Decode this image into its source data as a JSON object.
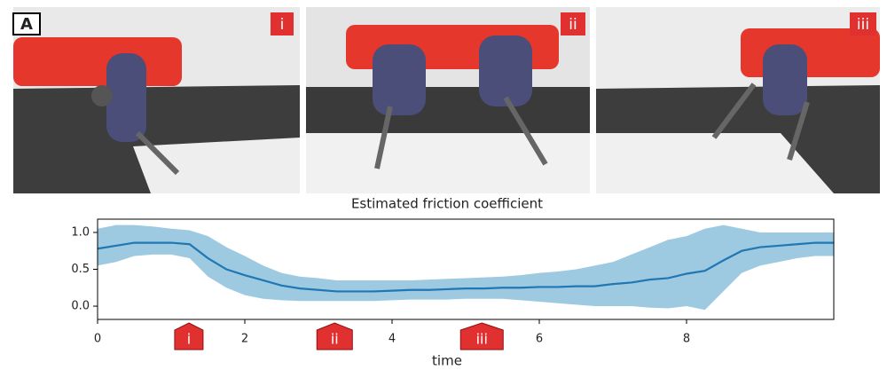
{
  "panel_label": "A",
  "photos": [
    "i",
    "ii",
    "iii"
  ],
  "chart_data": {
    "type": "line",
    "title": "Estimated friction coefficient",
    "xlabel": "time",
    "x": [
      0,
      0.25,
      0.5,
      0.75,
      1,
      1.25,
      1.5,
      1.75,
      2,
      2.25,
      2.5,
      2.75,
      3,
      3.25,
      3.5,
      3.75,
      4,
      4.25,
      4.5,
      4.75,
      5,
      5.25,
      5.5,
      5.75,
      6,
      6.25,
      6.5,
      6.75,
      7,
      7.25,
      7.5,
      7.75,
      8,
      8.25,
      8.5,
      8.75,
      9,
      9.25,
      9.5,
      9.75,
      10
    ],
    "series": [
      {
        "color": "#1f77b4",
        "values": [
          0.78,
          0.82,
          0.86,
          0.86,
          0.86,
          0.84,
          0.65,
          0.5,
          0.42,
          0.35,
          0.28,
          0.24,
          0.22,
          0.2,
          0.2,
          0.2,
          0.21,
          0.22,
          0.22,
          0.23,
          0.24,
          0.24,
          0.25,
          0.25,
          0.26,
          0.26,
          0.27,
          0.27,
          0.3,
          0.32,
          0.36,
          0.38,
          0.44,
          0.48,
          0.62,
          0.75,
          0.8,
          0.82,
          0.84,
          0.86,
          0.86
        ]
      }
    ],
    "band_color": "#9ecae1",
    "band_lower": [
      0.55,
      0.6,
      0.68,
      0.7,
      0.7,
      0.65,
      0.4,
      0.25,
      0.15,
      0.1,
      0.08,
      0.07,
      0.07,
      0.07,
      0.07,
      0.07,
      0.08,
      0.09,
      0.09,
      0.09,
      0.1,
      0.1,
      0.1,
      0.08,
      0.06,
      0.04,
      0.02,
      0,
      0,
      0,
      -0.02,
      -0.03,
      0,
      -0.05,
      0.2,
      0.45,
      0.55,
      0.6,
      0.65,
      0.68,
      0.68
    ],
    "band_upper": [
      1.05,
      1.1,
      1.1,
      1.08,
      1.05,
      1.03,
      0.95,
      0.8,
      0.68,
      0.55,
      0.45,
      0.4,
      0.38,
      0.35,
      0.35,
      0.35,
      0.35,
      0.35,
      0.36,
      0.37,
      0.38,
      0.39,
      0.4,
      0.42,
      0.45,
      0.47,
      0.5,
      0.55,
      0.6,
      0.7,
      0.8,
      0.9,
      0.95,
      1.05,
      1.1,
      1.05,
      1,
      1,
      1,
      1,
      1
    ],
    "xlim": [
      0,
      10
    ],
    "ylim": [
      -0.18,
      1.18
    ],
    "xticks": [
      0,
      2,
      4,
      6,
      8
    ],
    "yticks": [
      {
        "value": 0,
        "label": "0.0"
      },
      {
        "value": 0.5,
        "label": "0.5"
      },
      {
        "value": 1,
        "label": "1.0"
      }
    ],
    "annotations": [
      {
        "x": 1.24,
        "label": "i"
      },
      {
        "x": 3.22,
        "label": "ii"
      },
      {
        "x": 5.22,
        "label": "iii"
      }
    ]
  }
}
